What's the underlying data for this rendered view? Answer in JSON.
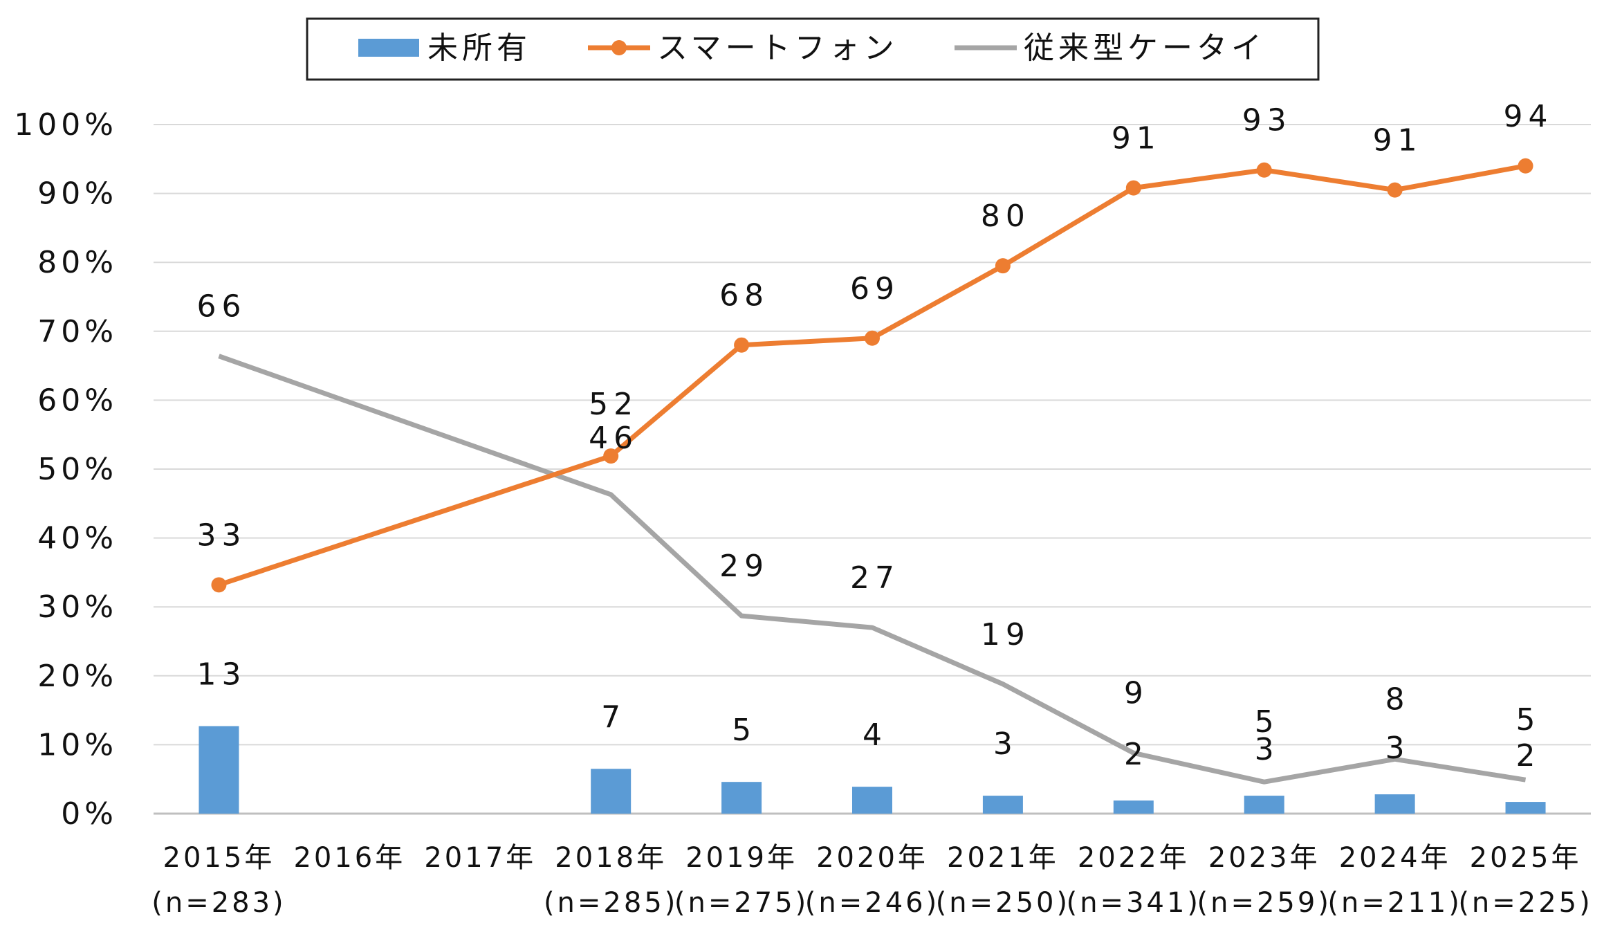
{
  "chart_data": {
    "type": "bar+line",
    "categories": [
      [
        "2015年",
        "(n=283)"
      ],
      [
        "2016年",
        ""
      ],
      [
        "2017年",
        ""
      ],
      [
        "2018年",
        "(n=285)"
      ],
      [
        "2019年",
        "(n=275)"
      ],
      [
        "2020年",
        "(n=246)"
      ],
      [
        "2021年",
        "(n=250)"
      ],
      [
        "2022年",
        "(n=341)"
      ],
      [
        "2023年",
        "(n=259)"
      ],
      [
        "2024年",
        "(n=211)"
      ],
      [
        "2025年",
        "(n=225)"
      ]
    ],
    "series": [
      {
        "name": "未所有",
        "kind": "bar",
        "color": "#5B9BD5",
        "values": [
          12.7,
          null,
          null,
          6.5,
          4.6,
          3.9,
          2.6,
          1.9,
          2.6,
          2.8,
          1.7
        ],
        "labels": [
          "13",
          "",
          "",
          "7",
          "5",
          "4",
          "3",
          "2",
          "3",
          "3",
          "2"
        ]
      },
      {
        "name": "スマートフォン",
        "kind": "line",
        "color": "#ED7D31",
        "marker": "circle",
        "values": [
          33.2,
          null,
          null,
          51.9,
          68.0,
          69.0,
          79.5,
          90.8,
          93.4,
          90.5,
          94.0
        ],
        "labels": [
          "33",
          "",
          "",
          "52",
          "68",
          "69",
          "80",
          "91",
          "93",
          "91",
          "94"
        ]
      },
      {
        "name": "従来型ケータイ",
        "kind": "line",
        "color": "#A5A5A5",
        "marker": "none",
        "values": [
          66.4,
          null,
          null,
          46.3,
          28.7,
          27.0,
          18.8,
          8.8,
          4.6,
          7.9,
          4.9
        ],
        "labels": [
          "66",
          "",
          "",
          "46",
          "29",
          "27",
          "19",
          "9",
          "5",
          "8",
          "5"
        ]
      }
    ],
    "y_ticks": [
      "0%",
      "10%",
      "20%",
      "30%",
      "40%",
      "50%",
      "60%",
      "70%",
      "80%",
      "90%",
      "100%"
    ],
    "ylim": [
      0,
      100
    ],
    "grid": "horizontal",
    "legend_position": "top",
    "colors": {
      "axis": "#bfbfbf",
      "grid": "#d9d9d9"
    }
  }
}
